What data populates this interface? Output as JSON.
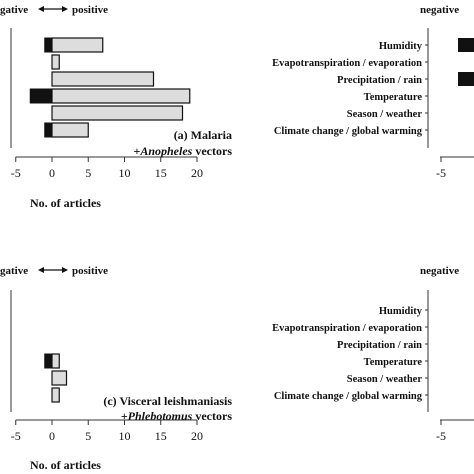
{
  "colors": {
    "negative_bar": "#111111",
    "positive_bar": "#dddddd",
    "axis": "#333333"
  },
  "header_top_left": {
    "left_text": "gative",
    "right_text": "positive"
  },
  "header_top_right": {
    "text": "negative"
  },
  "header_bottom_left": {
    "left_text": "gative",
    "right_text": "positive"
  },
  "header_bottom_right": {
    "text": "negative"
  },
  "chart_data": [
    {
      "type": "bar",
      "orientation": "horizontal",
      "stacked": true,
      "title_line1": "(a) Malaria",
      "title_line2_prefix": "+",
      "title_line2_italic": "Anopheles",
      "title_line2_suffix": " vectors",
      "xlabel": "No. of articles",
      "xlim": [
        -5,
        20
      ],
      "xticks": [
        -5,
        0,
        5,
        10,
        15,
        20
      ],
      "categories": [
        "Humidity",
        "Evapotranspiration / evaporation",
        "Precipitation / rain",
        "Temperature",
        "Season / weather",
        "Climate change / global warming"
      ],
      "series": [
        {
          "name": "negative",
          "values": [
            -1,
            0,
            0,
            -3,
            0,
            -1
          ]
        },
        {
          "name": "positive",
          "values": [
            7,
            1,
            14,
            19,
            18,
            5
          ]
        }
      ]
    },
    {
      "type": "bar",
      "orientation": "horizontal",
      "stacked": true,
      "title_line1": "(c) Visceral leishmaniasis",
      "title_line2_prefix": "+",
      "title_line2_italic": "Phlebotomus",
      "title_line2_suffix": " vectors",
      "xlabel": "No. of articles",
      "xlim": [
        -5,
        20
      ],
      "xticks": [
        -5,
        0,
        5,
        10,
        15,
        20
      ],
      "categories": [
        "Humidity",
        "Evapotranspiration / evaporation",
        "Precipitation / rain",
        "Temperature",
        "Season / weather",
        "Climate change / global warming"
      ],
      "series": [
        {
          "name": "negative",
          "values": [
            0,
            0,
            0,
            -1,
            0,
            0
          ]
        },
        {
          "name": "positive",
          "values": [
            0,
            0,
            0,
            1,
            2,
            1
          ]
        }
      ]
    },
    {
      "type": "bar",
      "orientation": "horizontal",
      "categories": [
        "Humidity",
        "Evapotranspiration / evaporation",
        "Precipitation / rain",
        "Temperature",
        "Season / weather",
        "Climate change / global warming"
      ],
      "xticks": [
        -5
      ],
      "series": [
        {
          "name": "negative",
          "values": [
            -1,
            0,
            -1,
            0,
            0,
            0
          ]
        }
      ]
    },
    {
      "type": "bar",
      "orientation": "horizontal",
      "categories": [
        "Humidity",
        "Evapotranspiration / evaporation",
        "Precipitation / rain",
        "Temperature",
        "Season / weather",
        "Climate change / global warming"
      ],
      "xticks": [
        -5
      ],
      "series": []
    }
  ]
}
